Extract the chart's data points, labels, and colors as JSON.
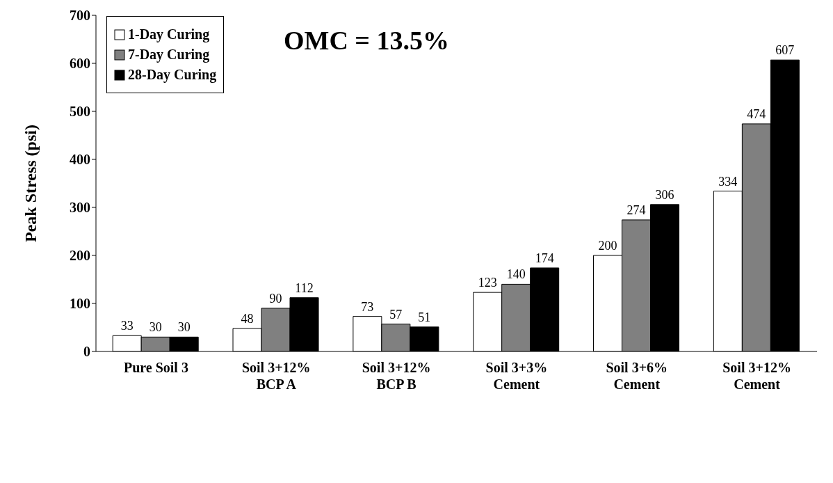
{
  "chart_data": {
    "type": "bar",
    "ylabel": "Peak Stress (psi)",
    "categories": [
      "Pure Soil 3",
      "Soil 3+12%\nBCP A",
      "Soil 3+12%\nBCP B",
      "Soil 3+3%\nCement",
      "Soil 3+6%\nCement",
      "Soil 3+12%\nCement"
    ],
    "series": [
      {
        "name": "1-Day Curing",
        "color": "#ffffff",
        "values": [
          33,
          48,
          73,
          123,
          200,
          334
        ]
      },
      {
        "name": "7-Day Curing",
        "color": "#808080",
        "values": [
          30,
          90,
          57,
          140,
          274,
          474
        ]
      },
      {
        "name": "28-Day Curing",
        "color": "#000000",
        "values": [
          30,
          112,
          51,
          174,
          306,
          607
        ]
      }
    ],
    "ylim": [
      0,
      700
    ],
    "yticks": [
      0,
      100,
      200,
      300,
      400,
      500,
      600,
      700
    ],
    "grid": false,
    "legend": "top left",
    "data_labels": true,
    "annotations": [
      "OMC = 13.5%"
    ]
  }
}
